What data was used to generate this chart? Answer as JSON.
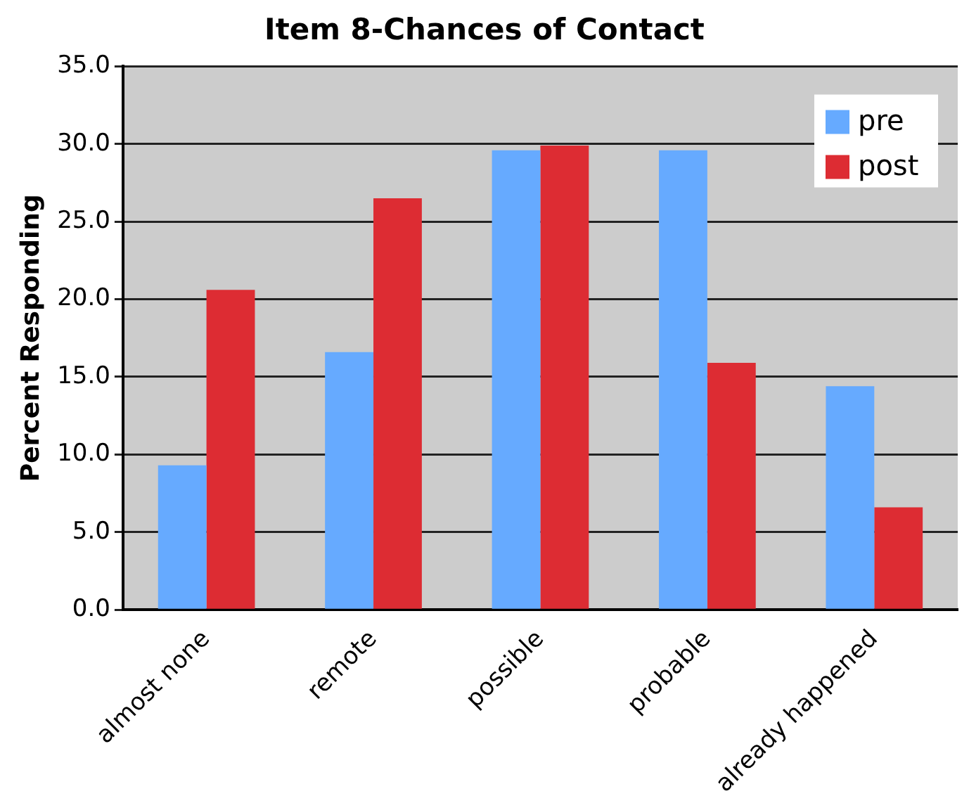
{
  "chart_data": {
    "type": "bar",
    "title": "Item 8-Chances of Contact",
    "ylabel": "Percent Responding",
    "categories": [
      "almost none",
      "remote",
      "possible",
      "probable",
      "already happened"
    ],
    "series": [
      {
        "name": "pre",
        "color": "#66aaff",
        "values": [
          9.3,
          16.6,
          29.6,
          29.6,
          14.4
        ]
      },
      {
        "name": "post",
        "color": "#dd2c33",
        "values": [
          20.6,
          26.5,
          29.9,
          15.9,
          6.6
        ]
      }
    ],
    "ylim": [
      0,
      35
    ],
    "yticks": [
      {
        "value": 0,
        "label": "0.0"
      },
      {
        "value": 5,
        "label": "5.0"
      },
      {
        "value": 10,
        "label": "10.0"
      },
      {
        "value": 15,
        "label": "15.0"
      },
      {
        "value": 20,
        "label": "20.0"
      },
      {
        "value": 25,
        "label": "25.0"
      },
      {
        "value": 30,
        "label": "30.0"
      },
      {
        "value": 35,
        "label": "35.0"
      }
    ],
    "grid": "y",
    "legend": "top right"
  }
}
